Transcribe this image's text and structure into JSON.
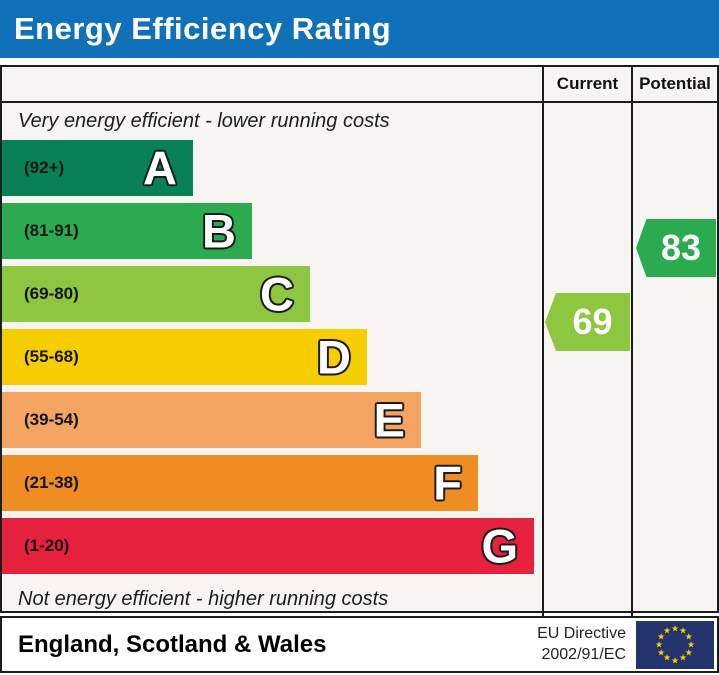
{
  "title": "Energy Efficiency Rating",
  "columns": {
    "current": "Current",
    "potential": "Potential"
  },
  "top_note": "Very energy efficient - lower running costs",
  "bottom_note": "Not energy efficient - higher running costs",
  "bands": [
    {
      "letter": "A",
      "range": "(92+)",
      "color": "#088156"
    },
    {
      "letter": "B",
      "range": "(81-91)",
      "color": "#2baa4f"
    },
    {
      "letter": "C",
      "range": "(69-80)",
      "color": "#8ec63f"
    },
    {
      "letter": "D",
      "range": "(55-68)",
      "color": "#f6ce00"
    },
    {
      "letter": "E",
      "range": "(39-54)",
      "color": "#f3a461"
    },
    {
      "letter": "F",
      "range": "(21-38)",
      "color": "#ef8c22"
    },
    {
      "letter": "G",
      "range": "(1-20)",
      "color": "#e5213e"
    }
  ],
  "ratings": {
    "current": {
      "value": "69",
      "band": "C",
      "color": "#8ec63f"
    },
    "potential": {
      "value": "83",
      "band": "B",
      "color": "#2baa4f"
    }
  },
  "footer": {
    "region": "England, Scotland & Wales",
    "directive_line1": "EU Directive",
    "directive_line2": "2002/91/EC",
    "eu_flag": {
      "background": "#24356e",
      "star_color": "#ffcc00",
      "star_count": 12
    }
  },
  "colors": {
    "title_bar": "#1070b8",
    "border": "#1c1c1c",
    "chart_background": "#f6f5f2"
  },
  "chart_data": {
    "type": "bar",
    "title": "Energy Efficiency Rating",
    "categories": [
      "A",
      "B",
      "C",
      "D",
      "E",
      "F",
      "G"
    ],
    "ranges": [
      "92+",
      "81-91",
      "69-80",
      "55-68",
      "39-54",
      "21-38",
      "1-20"
    ],
    "band_colors": [
      "#088156",
      "#2baa4f",
      "#8ec63f",
      "#f6ce00",
      "#f3a461",
      "#ef8c22",
      "#e5213e"
    ],
    "bar_relative_widths": [
      0.36,
      0.47,
      0.57,
      0.68,
      0.78,
      0.89,
      0.99
    ],
    "series": [
      {
        "name": "Current",
        "value": 69,
        "band": "C"
      },
      {
        "name": "Potential",
        "value": 83,
        "band": "B"
      }
    ],
    "annotations": [
      "Very energy efficient - lower running costs",
      "Not energy efficient - higher running costs"
    ],
    "legend_position": "none",
    "region": "England, Scotland & Wales",
    "directive": "EU Directive 2002/91/EC"
  }
}
